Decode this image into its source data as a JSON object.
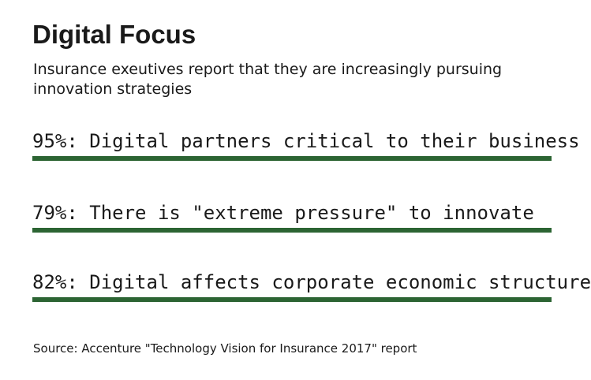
{
  "title": "Digital Focus",
  "subtitle": "Insurance exeutives report that they are increasingly pursuing innovation strategies",
  "source": "Source: Accenture \"Technology Vision for Insurance 2017\" report",
  "colors": {
    "rule": "#2c6433",
    "text": "#1a1a1a"
  },
  "chart_data": {
    "type": "table",
    "title": "Digital Focus",
    "subtitle": "Insurance exeutives report that they are increasingly pursuing innovation strategies",
    "rows": [
      {
        "value": 95,
        "label": "95%: Digital partners critical to their business"
      },
      {
        "value": 79,
        "label": "79%: There is \"extreme pressure\" to innovate"
      },
      {
        "value": 82,
        "label": "82%: Digital affects corporate economic structure"
      }
    ]
  }
}
